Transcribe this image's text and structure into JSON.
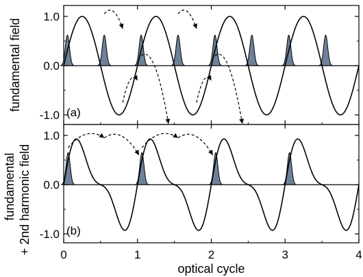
{
  "figure": {
    "xlabel": "optical cycle",
    "colors": {
      "line": "#000000",
      "pulse_fill": "#6d8199",
      "background": "#ffffff"
    }
  },
  "chart_data": [
    {
      "type": "line",
      "panel_label": "(a)",
      "ylabel": "fundamental field",
      "xlim": [
        0,
        4
      ],
      "ylim": [
        -1.2,
        1.2
      ],
      "x_ticks": [
        0,
        1,
        2,
        3,
        4
      ],
      "y_ticks": [
        1.0,
        0.0,
        -1.0
      ],
      "x_tick_labels": [
        "0",
        "1",
        "2",
        "3",
        "4"
      ],
      "y_tick_labels": [
        "1.0",
        "0.0",
        "-1.0"
      ],
      "field": {
        "form": "sin(2πx)",
        "amplitude": 1.0
      },
      "pulses": {
        "centers": [
          0.05,
          0.55,
          1.05,
          1.55,
          2.05,
          2.55,
          3.05,
          3.55
        ],
        "peak": 0.62
      },
      "arrows": [
        {
          "from": [
            0.55,
            1.05
          ],
          "to": [
            0.8,
            0.75
          ]
        },
        {
          "from": [
            0.8,
            -0.75
          ],
          "to": [
            1.0,
            -0.3
          ]
        },
        {
          "from": [
            1.55,
            1.05
          ],
          "to": [
            1.8,
            0.75
          ]
        },
        {
          "from": [
            1.8,
            -0.75
          ],
          "to": [
            2.0,
            -0.3
          ]
        },
        {
          "from": [
            1.05,
            0.2
          ],
          "to": [
            1.42,
            -1.18
          ]
        },
        {
          "from": [
            2.05,
            0.2
          ],
          "to": [
            2.42,
            -1.18
          ]
        }
      ],
      "zero_line": true,
      "grid": false
    },
    {
      "type": "line",
      "panel_label": "(b)",
      "ylabel_lines": [
        "fundamental",
        "+ 2nd harmonic field"
      ],
      "xlim": [
        0,
        4
      ],
      "ylim": [
        -1.2,
        1.2
      ],
      "x_ticks": [
        0,
        1,
        2,
        3,
        4
      ],
      "y_ticks": [
        1.0,
        0.0,
        -1.0
      ],
      "x_tick_labels": [
        "0",
        "1",
        "2",
        "3",
        "4"
      ],
      "y_tick_labels": [
        "1.0",
        "0.0",
        "-1.0"
      ],
      "field": {
        "form": "a·sin(2πx) + b·sin(4πx)",
        "a": 0.75,
        "b": 0.32
      },
      "pulses": {
        "centers": [
          0.06,
          1.06,
          2.06,
          3.06
        ],
        "peak": 0.65
      },
      "arrows": [
        {
          "from": [
            0.06,
            0.75
          ],
          "to": [
            0.55,
            0.95
          ]
        },
        {
          "from": [
            1.06,
            0.75
          ],
          "to": [
            1.55,
            0.95
          ]
        },
        {
          "from": [
            0.55,
            0.95
          ],
          "to": [
            1.02,
            0.6
          ]
        },
        {
          "from": [
            1.55,
            0.95
          ],
          "to": [
            2.02,
            0.6
          ]
        }
      ],
      "zero_line": true,
      "grid": false
    }
  ]
}
